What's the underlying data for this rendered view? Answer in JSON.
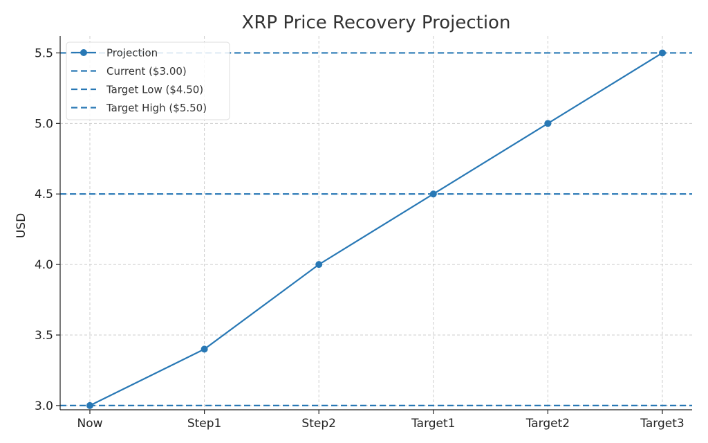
{
  "chart_data": {
    "type": "line",
    "title": "XRP Price Recovery Projection",
    "xlabel": "",
    "ylabel": "USD",
    "categories": [
      "Now",
      "Step1",
      "Step2",
      "Target1",
      "Target2",
      "Target3"
    ],
    "series": [
      {
        "name": "Projection",
        "values": [
          3.0,
          3.4,
          4.0,
          4.5,
          5.0,
          5.5
        ],
        "color": "#2878b5",
        "marker": "circle"
      }
    ],
    "reference_lines": [
      {
        "name": "Current ($3.00)",
        "y": 3.0,
        "color": "#2878b5",
        "style": "dashed"
      },
      {
        "name": "Target Low ($4.50)",
        "y": 4.5,
        "color": "#2878b5",
        "style": "dashed"
      },
      {
        "name": "Target High ($5.50)",
        "y": 5.5,
        "color": "#2878b5",
        "style": "dashed"
      }
    ],
    "ylim": [
      2.97,
      5.62
    ],
    "yticks": [
      "3.0",
      "3.5",
      "4.0",
      "4.5",
      "5.0",
      "5.5"
    ],
    "grid": true,
    "legend_position": "top-left"
  }
}
